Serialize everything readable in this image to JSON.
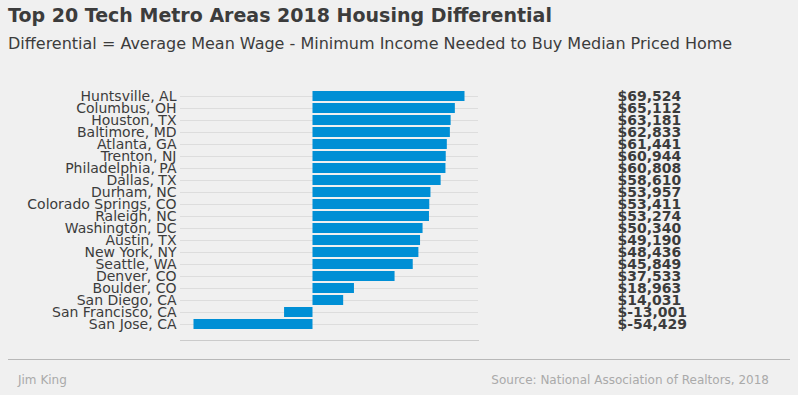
{
  "chart_data": {
    "type": "bar",
    "orientation": "horizontal",
    "title": "Top 20 Tech Metro Areas 2018 Housing Differential",
    "subtitle": "Differential = Average Mean Wage - Minimum Income Needed to Buy Median Priced Home",
    "credit": "Jim King",
    "source": "Source: National Association of Realtors, 2018",
    "categories": [
      "Huntsville, AL",
      "Columbus, OH",
      "Houston, TX",
      "Baltimore, MD",
      "Atlanta, GA",
      "Trenton, NJ",
      "Philadelphia, PA",
      "Dallas, TX",
      "Durham, NC",
      "Colorado Springs, CO",
      "Raleigh, NC",
      "Washington, DC",
      "Austin, TX",
      "New York, NY",
      "Seattle, WA",
      "Denver, CO",
      "Boulder, CO",
      "San Diego, CA",
      "San Francisco, CA",
      "San Jose, CA"
    ],
    "values": [
      69524,
      65112,
      63181,
      62833,
      61441,
      60944,
      60808,
      58610,
      53957,
      53411,
      53274,
      50340,
      49190,
      48436,
      45849,
      37533,
      18963,
      14031,
      -13001,
      -54429
    ],
    "value_labels": [
      "$69,524",
      "$65,112",
      "$63,181",
      "$62,833",
      "$61,441",
      "$60,944",
      "$60,808",
      "$58,610",
      "$53,957",
      "$53,411",
      "$53,274",
      "$50,340",
      "$49,190",
      "$48,436",
      "$45,849",
      "$37,533",
      "$18,963",
      "$14,031",
      "$-13,001",
      "$-54,429"
    ],
    "data_labels": true,
    "color": "#008fd5",
    "xlim": [
      -60600,
      75700
    ],
    "xticks": [],
    "tick_labels": "y",
    "grid": true
  }
}
